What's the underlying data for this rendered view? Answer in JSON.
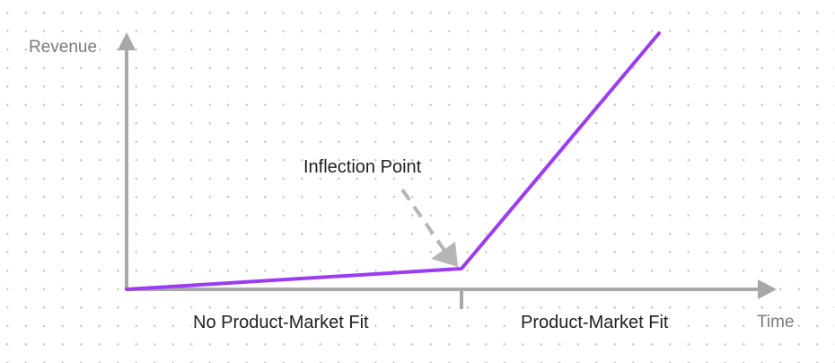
{
  "axes": {
    "y_label": "Revenue",
    "x_label": "Time"
  },
  "annotation": {
    "text": "Inflection Point"
  },
  "regions": {
    "left": "No Product-Market Fit",
    "right": "Product-Market Fit"
  },
  "colors": {
    "axis": "#a8a8a8",
    "curve": "#9b3cf2",
    "arrow": "#b5b5b5",
    "text": "#1f1f1f",
    "axis_text": "#7a7a7a",
    "grid_dot": "#c9c9c9"
  }
}
